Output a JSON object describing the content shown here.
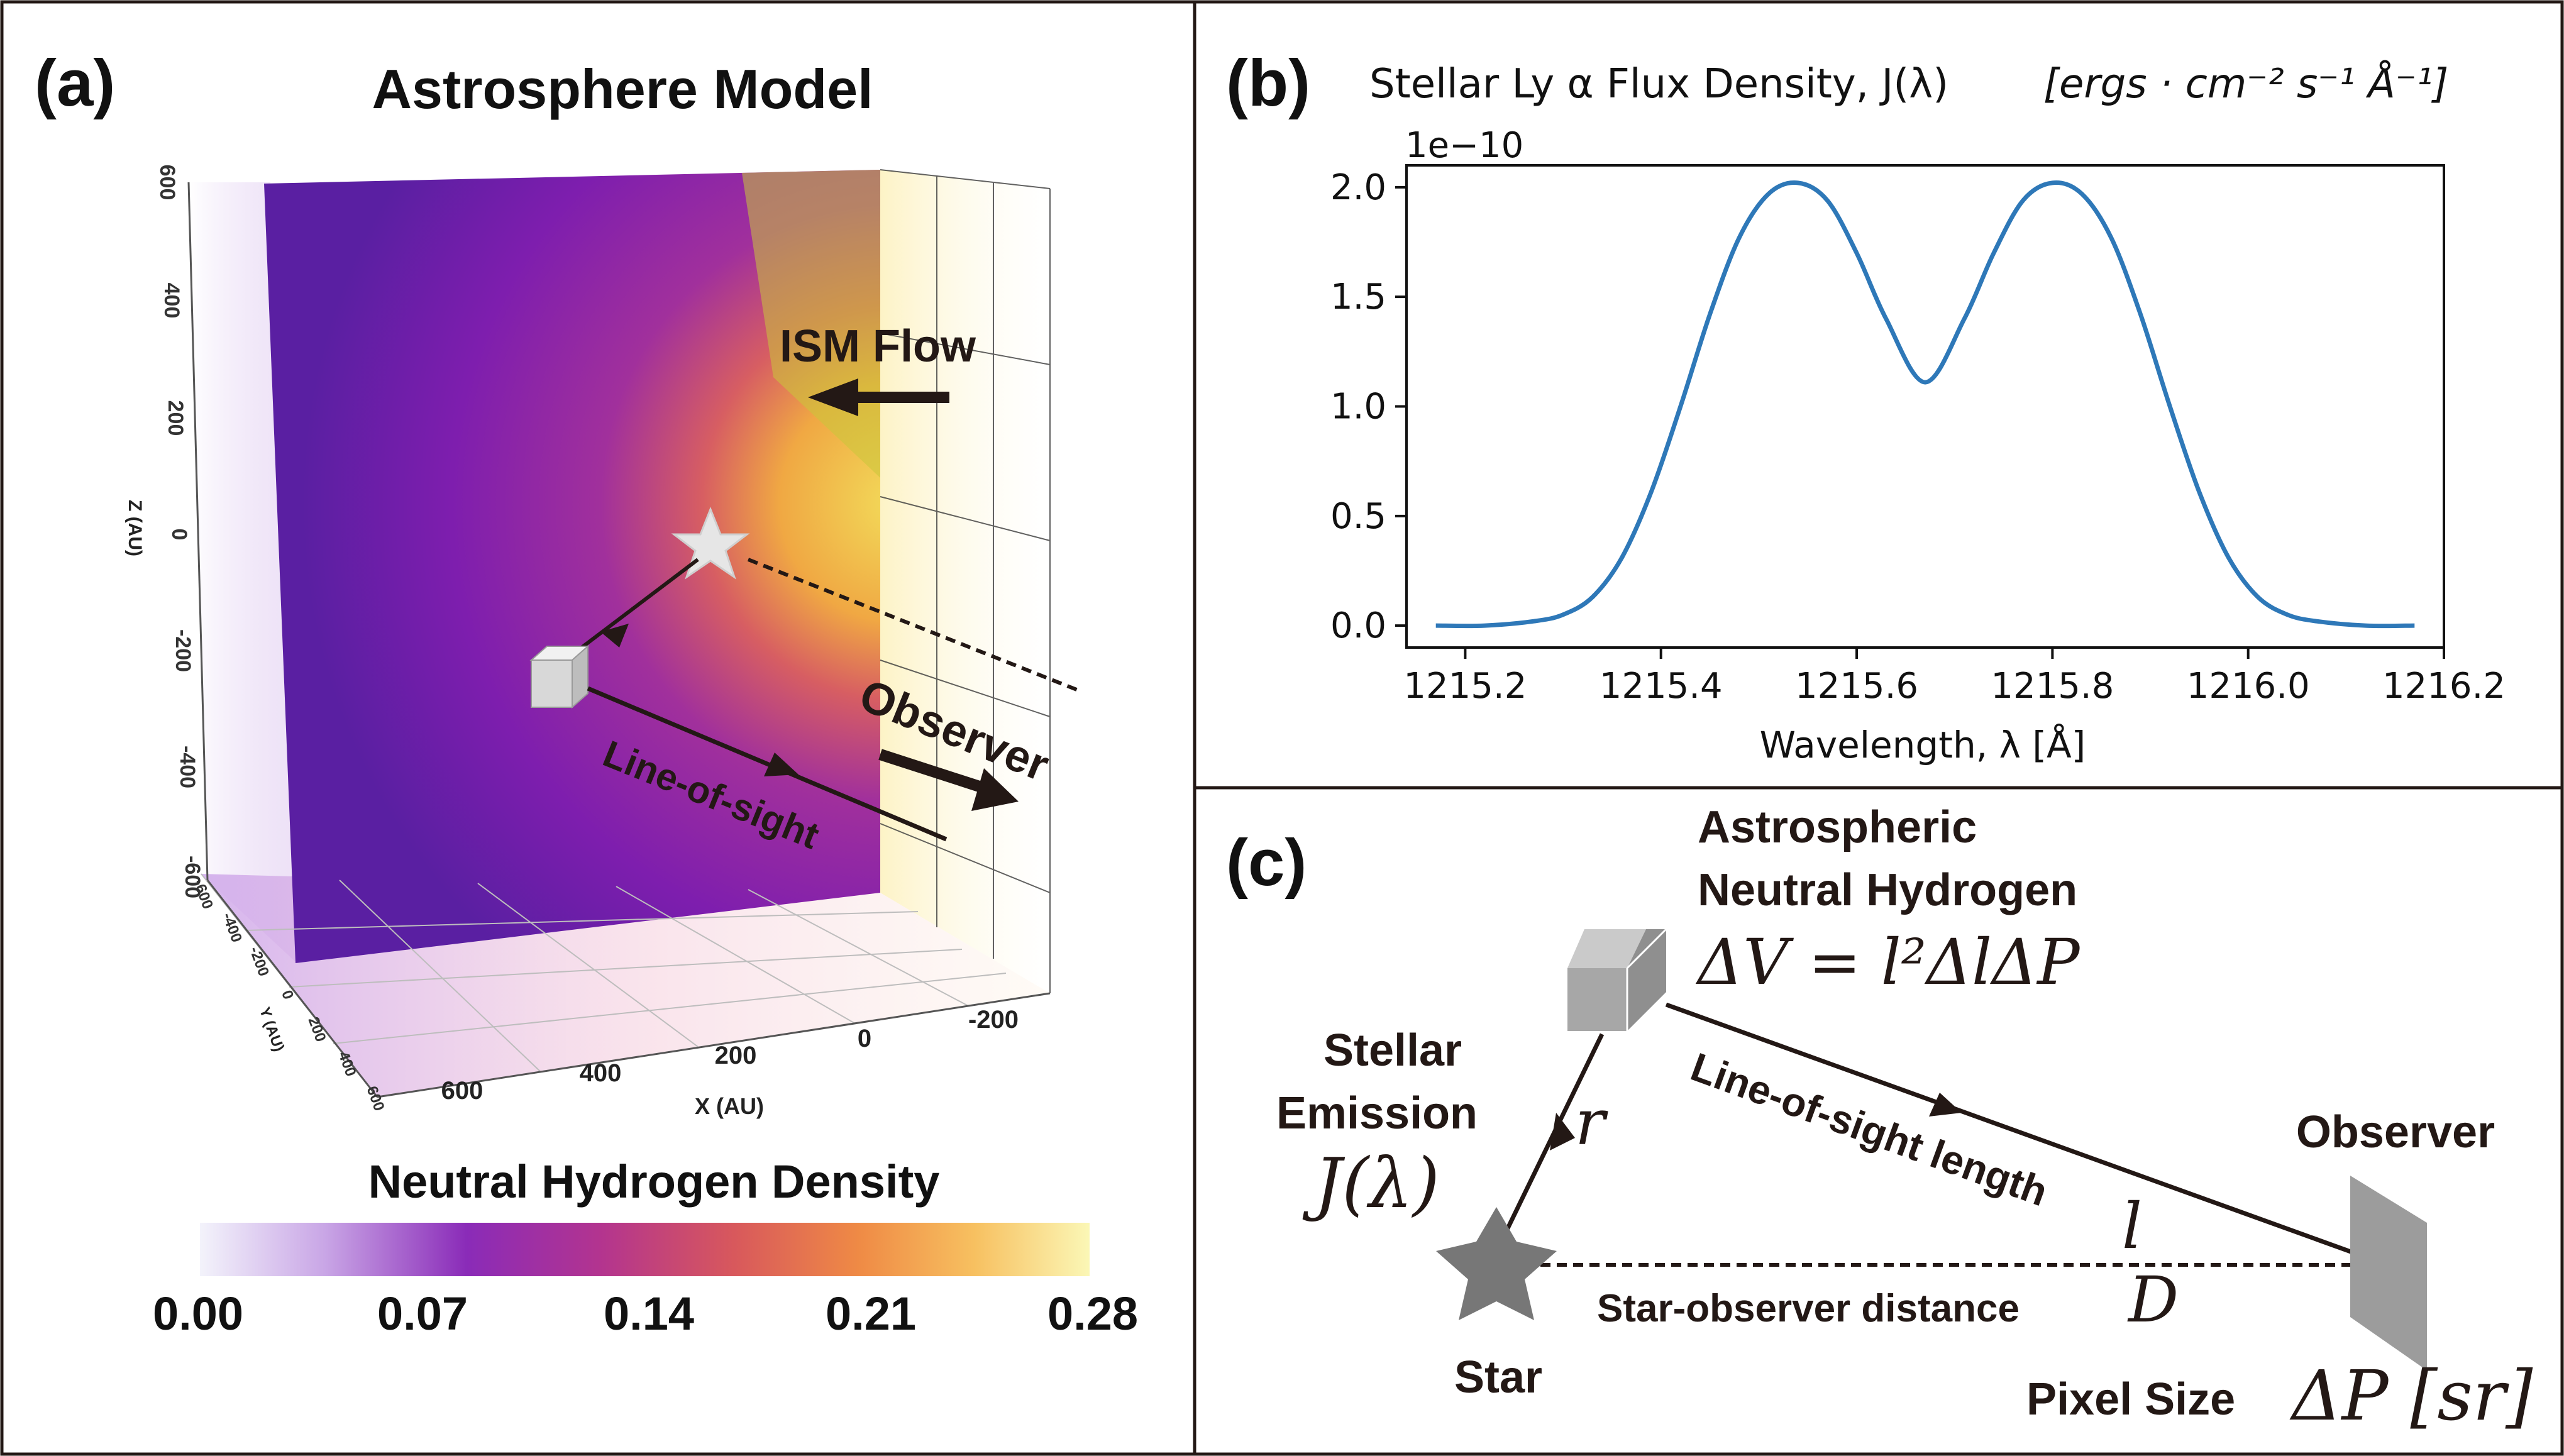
{
  "panel_a": {
    "label": "(a)",
    "title": "Astrosphere Model",
    "annotations": {
      "ism_flow": "ISM Flow",
      "observer": "Observer",
      "line_of_sight": "Line-of-sight"
    },
    "axes": {
      "z_label": "Z (AU)",
      "x_label": "X (AU)",
      "y_label": "Y (AU)",
      "z_ticks": [
        "600",
        "400",
        "200",
        "0",
        "-200",
        "-400",
        "-600"
      ],
      "x_ticks": [
        "600",
        "400",
        "200",
        "0",
        "-200"
      ],
      "y_ticks": [
        "-600",
        "-400",
        "-200",
        "0",
        "200",
        "400",
        "600"
      ]
    },
    "colorbar": {
      "title": "Neutral Hydrogen Density",
      "ticks": [
        "0.00",
        "0.07",
        "0.14",
        "0.21",
        "0.28"
      ],
      "colors": [
        "#f3f3fb",
        "#c9a6e6",
        "#8a2bb8",
        "#b3348f",
        "#d8585c",
        "#ef8a45",
        "#f7c060",
        "#fbf7b6"
      ]
    }
  },
  "panel_b": {
    "label": "(b)",
    "title": "Stellar Ly α Flux Density, J(λ)",
    "units": "[ergs · cm⁻² s⁻¹ Å⁻¹]",
    "scale": "1e−10",
    "line_color": "#2e78b8"
  },
  "panel_c": {
    "label": "(c)",
    "hydrogen_title_1": "Astrospheric",
    "hydrogen_title_2": "Neutral Hydrogen",
    "volume_eq": "ΔV = l²ΔlΔP",
    "emission_1": "Stellar",
    "emission_2": "Emission",
    "emission_sym": "J(λ)",
    "r_sym": "r",
    "los_label": "Line-of-sight length",
    "l_sym": "l",
    "observer": "Observer",
    "distance_label": "Star-observer distance",
    "d_sym": "D",
    "star": "Star",
    "pixel_label": "Pixel Size",
    "pixel_sym": "ΔP [sr]"
  },
  "chart_data": {
    "type": "line",
    "title": "Stellar Ly α Flux Density, J(λ) [ergs·cm⁻²s⁻¹Å⁻¹]",
    "xlabel": "Wavelength, λ [Å]",
    "ylabel": "",
    "y_scale_label": "1e−10",
    "xlim": [
      1215.14,
      1216.2
    ],
    "ylim": [
      -0.1,
      2.1
    ],
    "x_ticks": [
      "1215.2",
      "1215.4",
      "1215.6",
      "1215.8",
      "1216.0",
      "1216.2"
    ],
    "y_ticks": [
      "0.0",
      "0.5",
      "1.0",
      "1.5",
      "2.0"
    ],
    "grid": false,
    "series": [
      {
        "x": [
          1215.17,
          1215.22,
          1215.27,
          1215.3,
          1215.33,
          1215.36,
          1215.39,
          1215.42,
          1215.45,
          1215.48,
          1215.51,
          1215.54,
          1215.57,
          1215.6,
          1215.63,
          1215.67,
          1215.71,
          1215.74,
          1215.77,
          1215.8,
          1215.83,
          1215.86,
          1215.89,
          1215.92,
          1215.95,
          1215.98,
          1216.01,
          1216.04,
          1216.07,
          1216.12,
          1216.17
        ],
        "values": [
          0.0,
          0.0,
          0.02,
          0.05,
          0.13,
          0.31,
          0.61,
          1.0,
          1.42,
          1.77,
          1.97,
          2.02,
          1.94,
          1.7,
          1.4,
          1.11,
          1.4,
          1.7,
          1.94,
          2.02,
          1.97,
          1.77,
          1.42,
          1.0,
          0.61,
          0.31,
          0.13,
          0.05,
          0.02,
          0.0,
          0.0
        ]
      }
    ]
  }
}
